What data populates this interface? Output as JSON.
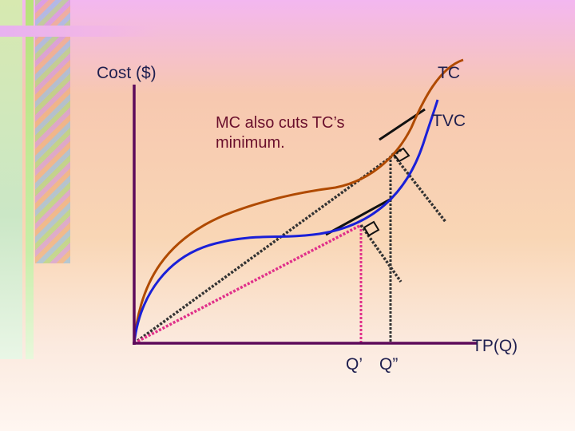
{
  "labels": {
    "y_axis": "Cost ($)",
    "tc": "TC",
    "tvc": "TVC",
    "note_line1": "MC also cuts TC’s",
    "note_line2": "minimum.",
    "q_prime": "Q’",
    "q_double_prime": "Q”",
    "x_axis": "TP(Q)"
  },
  "colors": {
    "axis": "#5c0a5a",
    "tc_curve": "#b04a00",
    "tvc_curve": "#1a20d8",
    "ray_to_tc": "#333333",
    "ray_to_tvc": "#e0308a",
    "label_text": "#1f1f4f",
    "note_text": "#6a0f2c"
  },
  "icons": [
    "right-angle-marker-icon"
  ]
}
